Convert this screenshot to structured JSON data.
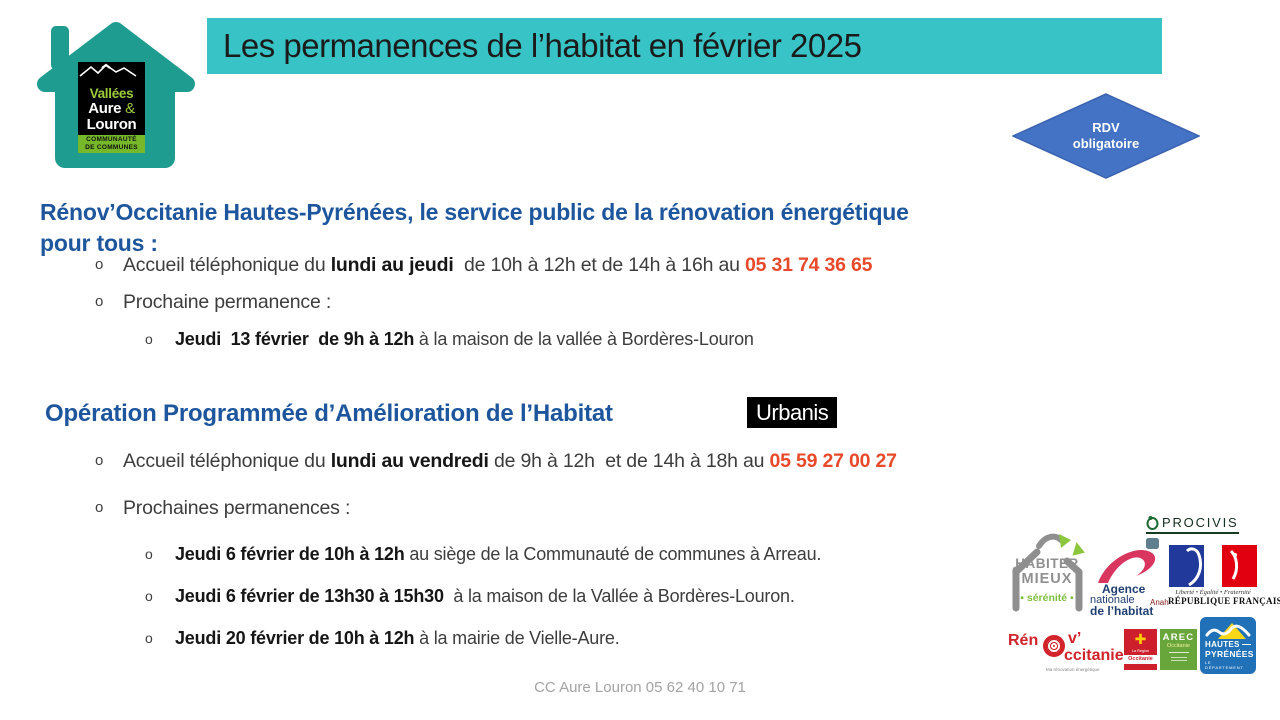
{
  "colors": {
    "banner_teal": "#38C4C6",
    "house_teal": "#1F9C90",
    "heading_blue": "#1E569E",
    "phone_red": "#E8492A",
    "diamond_blue": "#4472C4",
    "cc_green": "#76B82A"
  },
  "bullet_marker": "o",
  "header": {
    "title": "Les permanences de l’habitat en février 2025"
  },
  "cc_logo": {
    "line1": "Vallées",
    "line2": "Aure",
    "amp": "&",
    "line3": "Louron",
    "strip_line1": "COMMUNAUTÉ",
    "strip_line2": "DE COMMUNES"
  },
  "badge": {
    "line1": "RDV",
    "line2": "obligatoire"
  },
  "section1": {
    "heading_line1": "Rénov’Occitanie Hautes-Pyrénées, le service public de la rénovation énergétique",
    "heading_line2": "pour tous :",
    "bullets": [
      {
        "level": 1,
        "segments": [
          {
            "t": "Accueil téléphonique du "
          },
          {
            "t": "lundi au jeudi",
            "b": true
          },
          {
            "t": "  de 10h à 12h et de 14h à 16h au "
          },
          {
            "t": "05 31 74 36 65",
            "b": true,
            "accent": true
          }
        ]
      },
      {
        "level": 1,
        "segments": [
          {
            "t": "Prochaine permanence :"
          }
        ]
      },
      {
        "level": 2,
        "segments": [
          {
            "t": "Jeudi  13 février  de 9h à 12h",
            "b": true
          },
          {
            "t": " à la maison de la vallée à Bordères-Louron"
          }
        ]
      }
    ]
  },
  "section2": {
    "heading": "Opération Programmée d’Amélioration de l’Habitat",
    "urbanis_label": "Urbanis",
    "bullets": [
      {
        "level": 1,
        "segments": [
          {
            "t": "Accueil téléphonique du "
          },
          {
            "t": "lundi au vendredi",
            "b": true
          },
          {
            "t": " de 9h à 12h  et de 14h à 18h au "
          },
          {
            "t": "05 59 27 00 27",
            "b": true,
            "accent": true
          }
        ]
      },
      {
        "level": 1,
        "segments": [
          {
            "t": "Prochaines permanences :"
          }
        ]
      },
      {
        "level": 2,
        "segments": [
          {
            "t": "Jeudi 6 février de 10h à 12h",
            "b": true
          },
          {
            "t": " au siège de la Communauté de communes à Arreau."
          }
        ]
      },
      {
        "level": 2,
        "segments": [
          {
            "t": "Jeudi 6 février de 13h30 à 15h30",
            "b": true
          },
          {
            "t": "  à la maison de la Vallée à Bordères-Louron."
          }
        ]
      },
      {
        "level": 2,
        "segments": [
          {
            "t": "Jeudi 20 février de 10h à 12h",
            "b": true
          },
          {
            "t": " à la mairie de Vielle-Aure."
          }
        ]
      }
    ]
  },
  "partner_logos": {
    "procivis": {
      "name": "PROCIVIS"
    },
    "habiter_mieux": {
      "line1": "HABITER",
      "line2": "MIEUX",
      "tagline": "▪ sérénité ▪"
    },
    "anah": {
      "line1": "Agence",
      "line2": "nationale",
      "line3": "de l’habitat",
      "abbr": "Anah"
    },
    "republique_francaise": {
      "motto": "Liberté • Égalité • Fraternité",
      "name": "RÉPUBLIQUE FRANÇAISE"
    },
    "renov_occitanie": {
      "part1": "Rén",
      "part2": "v’",
      "part3": "ccitanie",
      "tagline": "Ma rénovation énergétique"
    },
    "region_occitanie": {
      "cross_glyph": "✚",
      "line1": "La Région",
      "line2": "Occitanie"
    },
    "arec": {
      "name": "AREC",
      "region": "Occitanie"
    },
    "hautes_pyrenees": {
      "line1": "HAUTES",
      "line2": "PYRÉNÉES",
      "tagline": "LE DÉPARTEMENT"
    }
  },
  "footer": {
    "text": "CC Aure Louron 05 62 40 10 71"
  }
}
